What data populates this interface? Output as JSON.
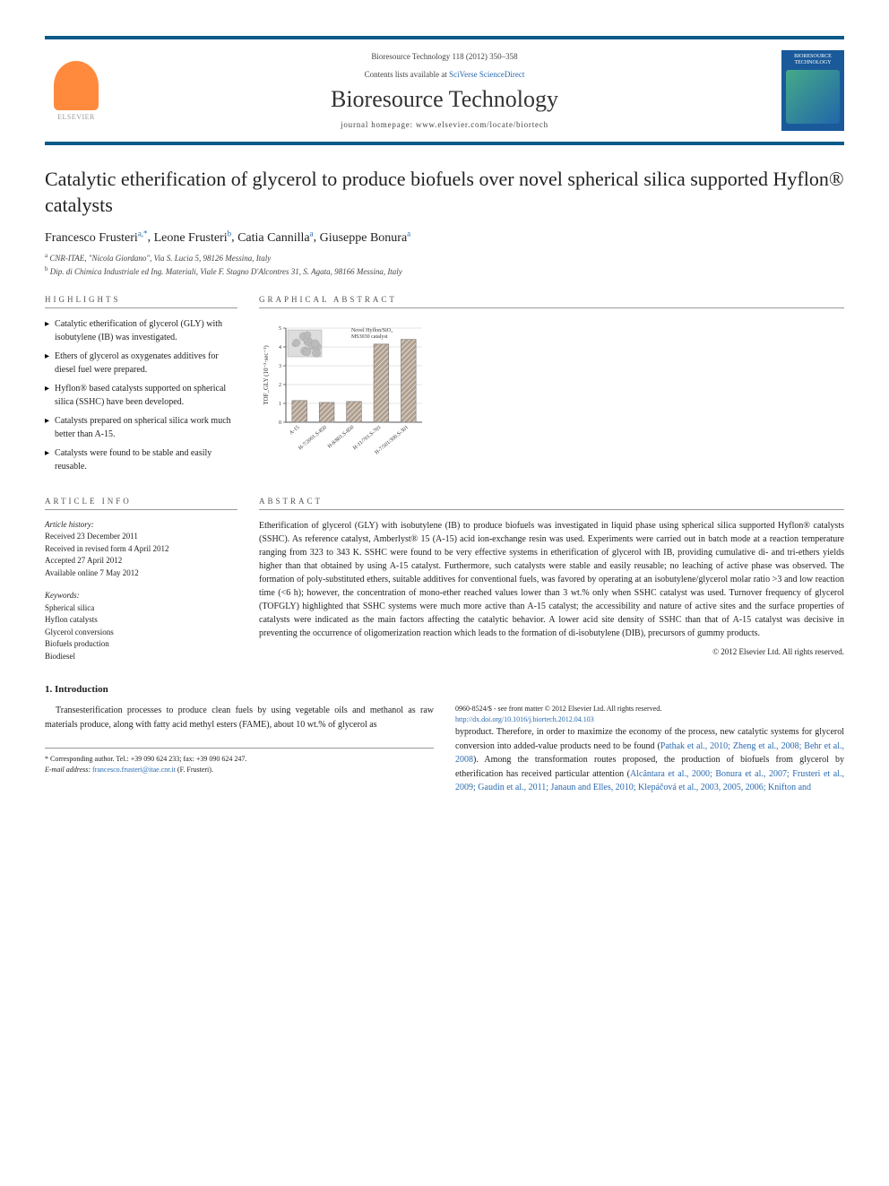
{
  "header": {
    "journal_ref": "Bioresource Technology 118 (2012) 350–358",
    "contents_prefix": "Contents lists available at ",
    "contents_link": "SciVerse ScienceDirect",
    "journal_name": "Bioresource Technology",
    "homepage_prefix": "journal homepage: ",
    "homepage_url": "www.elsevier.com/locate/biortech",
    "publisher": "ELSEVIER",
    "cover_title": "BIORESOURCE TECHNOLOGY"
  },
  "title": "Catalytic etherification of glycerol to produce biofuels over novel spherical silica supported Hyflon® catalysts",
  "authors": [
    {
      "name": "Francesco Frusteri",
      "sup": "a,*"
    },
    {
      "name": "Leone Frusteri",
      "sup": "b"
    },
    {
      "name": "Catia Cannilla",
      "sup": "a"
    },
    {
      "name": "Giuseppe Bonura",
      "sup": "a"
    }
  ],
  "author_sep": ", ",
  "affiliations": [
    {
      "sup": "a",
      "text": "CNR-ITAE, \"Nicola Giordano\", Via S. Lucia 5, 98126 Messina, Italy"
    },
    {
      "sup": "b",
      "text": "Dip. di Chimica Industriale ed Ing. Materiali, Viale F. Stagno D'Alcontres 31, S. Agata, 98166 Messina, Italy"
    }
  ],
  "sections": {
    "highlights_head": "HIGHLIGHTS",
    "highlights": [
      "Catalytic etherification of glycerol (GLY) with isobutylene (IB) was investigated.",
      "Ethers of glycerol as oxygenates additives for diesel fuel were prepared.",
      "Hyflon® based catalysts supported on spherical silica (SSHC) have been developed.",
      "Catalysts prepared on spherical silica work much better than A-15.",
      "Catalysts were found to be stable and easily reusable."
    ],
    "graphical_head": "GRAPHICAL ABSTRACT",
    "article_info_head": "ARTICLE INFO",
    "article_history_label": "Article history:",
    "article_history": [
      "Received 23 December 2011",
      "Received in revised form 4 April 2012",
      "Accepted 27 April 2012",
      "Available online 7 May 2012"
    ],
    "keywords_label": "Keywords:",
    "keywords": [
      "Spherical silica",
      "Hyflon catalysts",
      "Glycerol conversions",
      "Biofuels production",
      "Biodiesel"
    ],
    "abstract_head": "ABSTRACT",
    "abstract_text": "Etherification of glycerol (GLY) with isobutylene (IB) to produce biofuels was investigated in liquid phase using spherical silica supported Hyflon® catalysts (SSHC). As reference catalyst, Amberlyst® 15 (A-15) acid ion-exchange resin was used. Experiments were carried out in batch mode at a reaction temperature ranging from 323 to 343 K. SSHC were found to be very effective systems in etherification of glycerol with IB, providing cumulative di- and tri-ethers yields higher than that obtained by using A-15 catalyst. Furthermore, such catalysts were stable and easily reusable; no leaching of active phase was observed. The formation of poly-substituted ethers, suitable additives for conventional fuels, was favored by operating at an isobutylene/glycerol molar ratio >3 and low reaction time (<6 h); however, the concentration of mono-ether reached values lower than 3 wt.% only when SSHC catalyst was used. Turnover frequency of glycerol (TOFGLY) highlighted that SSHC systems were much more active than A-15 catalyst; the accessibility and nature of active sites and the surface properties of catalysts were indicated as the main factors affecting the catalytic behavior. A lower acid site density of SSHC than that of A-15 catalyst was decisive in preventing the occurrence of oligomerization reaction which leads to the formation of di-isobutylene (DIB), precursors of gummy products.",
    "copyright": "© 2012 Elsevier Ltd. All rights reserved."
  },
  "chart": {
    "type": "bar",
    "title_top": "Novel Hyflon/SiO₂",
    "title_sub": "MS3030 catalyst",
    "ylabel": "TOF_GLY (10⁻³·sec⁻¹)",
    "ylim": [
      0,
      5
    ],
    "ytick_step": 1,
    "categories": [
      "A-15",
      "H-7/2001.S-850",
      "H-8/801.S-850",
      "H-11/701.S-701",
      "H-7/501/300.S-301"
    ],
    "values": [
      1.15,
      1.05,
      1.1,
      4.15,
      4.4
    ],
    "bar_color": "#b0a090",
    "bar_pattern": "hatched",
    "background_color": "#ffffff",
    "grid_color": "#cccccc",
    "axis_color": "#555555",
    "label_fontsize": 7,
    "tick_fontsize": 6,
    "bar_width": 0.55,
    "thumbnail_overlay": true
  },
  "intro": {
    "head": "1. Introduction",
    "para1": "Transesterification processes to produce clean fuels by using vegetable oils and methanol as raw materials produce, along with fatty acid methyl esters (FAME), about 10 wt.% of glycerol as",
    "para2_a": "byproduct. Therefore, in order to maximize the economy of the process, new catalytic systems for glycerol conversion into added-value products need to be found (",
    "para2_refs1": "Pathak et al., 2010; Zheng et al., 2008; Behr et al., 2008",
    "para2_b": "). Among the transformation routes proposed, the production of biofuels from glycerol by etherification has received particular attention (",
    "para2_refs2": "Alcântara et al., 2000; Bonura et al., 2007; Frusteri et al., 2009; Gaudin et al., 2011; Janaun and Elles, 2010; Klepáčová et al., 2003, 2005, 2006; Knifton and"
  },
  "footnote": {
    "corr_label": "* Corresponding author. Tel.: +39 090 624 233; fax: +39 090 624 247.",
    "email_label": "E-mail address:",
    "email": "francesco.frusteri@itae.cnr.it",
    "email_suffix": "(F. Frusteri)."
  },
  "doi": {
    "line1": "0960-8524/$ - see front matter © 2012 Elsevier Ltd. All rights reserved.",
    "line2": "http://dx.doi.org/10.1016/j.biortech.2012.04.103"
  }
}
